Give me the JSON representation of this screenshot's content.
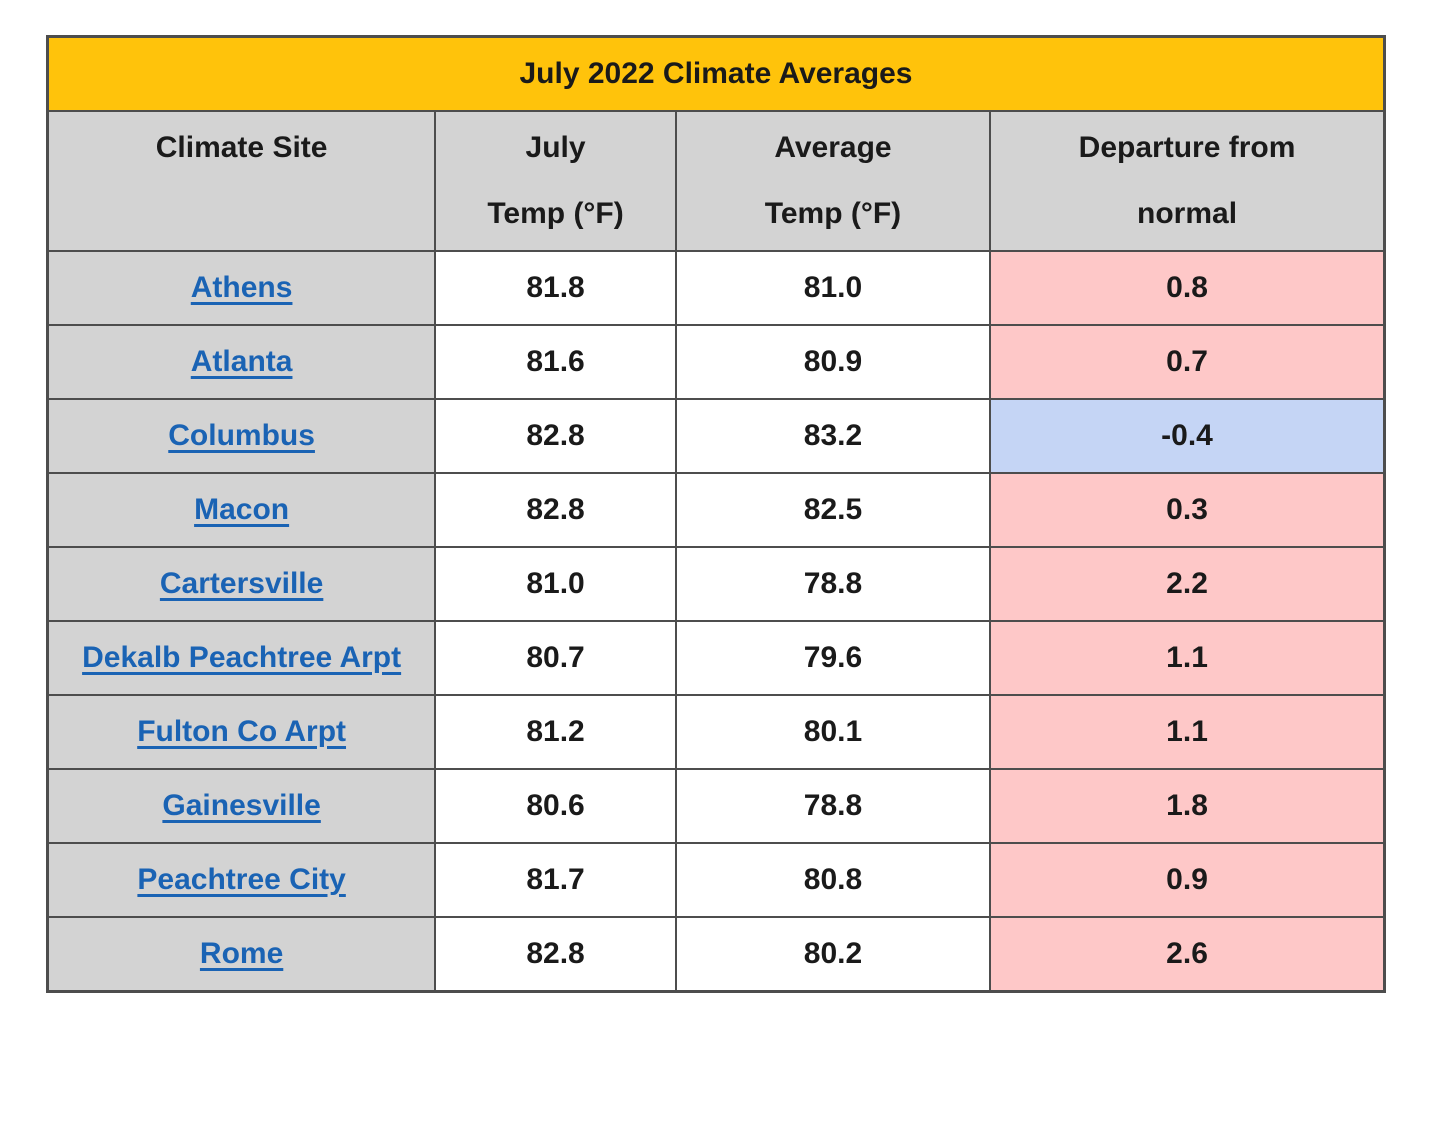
{
  "chart_data": {
    "type": "table",
    "title": "July 2022 Climate Averages",
    "columns": [
      "Climate Site",
      "July\nTemp (°F)",
      "Average\nTemp (°F)",
      "Departure from\nnormal"
    ],
    "rows": [
      {
        "site": "Athens",
        "july_temp": "81.8",
        "avg_temp": "81.0",
        "departure": "0.8",
        "departure_status": "above"
      },
      {
        "site": "Atlanta",
        "july_temp": "81.6",
        "avg_temp": "80.9",
        "departure": "0.7",
        "departure_status": "above"
      },
      {
        "site": "Columbus",
        "july_temp": "82.8",
        "avg_temp": "83.2",
        "departure": "-0.4",
        "departure_status": "below"
      },
      {
        "site": "Macon",
        "july_temp": "82.8",
        "avg_temp": "82.5",
        "departure": "0.3",
        "departure_status": "above"
      },
      {
        "site": "Cartersville",
        "july_temp": "81.0",
        "avg_temp": "78.8",
        "departure": "2.2",
        "departure_status": "above"
      },
      {
        "site": "Dekalb Peachtree Arpt",
        "july_temp": "80.7",
        "avg_temp": "79.6",
        "departure": "1.1",
        "departure_status": "above"
      },
      {
        "site": "Fulton Co Arpt",
        "july_temp": "81.2",
        "avg_temp": "80.1",
        "departure": "1.1",
        "departure_status": "above"
      },
      {
        "site": "Gainesville",
        "july_temp": "80.6",
        "avg_temp": "78.8",
        "departure": "1.8",
        "departure_status": "above"
      },
      {
        "site": "Peachtree City",
        "july_temp": "81.7",
        "avg_temp": "80.8",
        "departure": "0.9",
        "departure_status": "above"
      },
      {
        "site": "Rome",
        "july_temp": "82.8",
        "avg_temp": "80.2",
        "departure": "2.6",
        "departure_status": "above"
      }
    ]
  },
  "colors": {
    "title_bg": "#FFC30B",
    "header_bg": "#D3D3D3",
    "site_cell_bg": "#D3D3D3",
    "above_normal_bg": "#FEC8C8",
    "below_normal_bg": "#C5D5F5",
    "link": "#1A63B4",
    "border": "#4D4D4D",
    "text": "#1A1A1A"
  }
}
